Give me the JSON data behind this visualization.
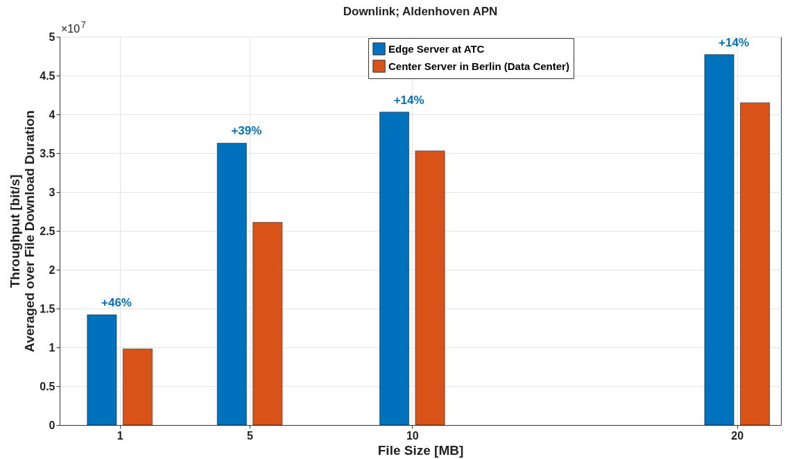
{
  "chart_data": {
    "type": "bar",
    "title": "Downlink; Aldenhoven APN",
    "xlabel": "File Size [MB]",
    "ylabel": "Throughput [bit/s]\nAveraged over File Download Duration",
    "x": [
      1,
      5,
      10,
      20
    ],
    "series": [
      {
        "name": "Edge Server at ATC",
        "color": "#0072bd",
        "values": [
          1.42,
          3.63,
          4.03,
          4.77
        ]
      },
      {
        "name": "Center Server in Berlin (Data Center)",
        "color": "#d95319",
        "values": [
          0.98,
          2.61,
          3.53,
          4.15
        ]
      }
    ],
    "xlim": [
      -0.85,
      21.35
    ],
    "xticks": [
      1,
      5,
      10,
      20
    ],
    "ylim": [
      0,
      5
    ],
    "yticks": [
      0,
      0.5,
      1,
      1.5,
      2,
      2.5,
      3,
      3.5,
      4,
      4.5,
      5
    ],
    "grid": true,
    "legend": "top right",
    "annotations": [
      "×10$^{7}$",
      "+46%",
      "+39%",
      "+14%",
      "+14%"
    ]
  }
}
